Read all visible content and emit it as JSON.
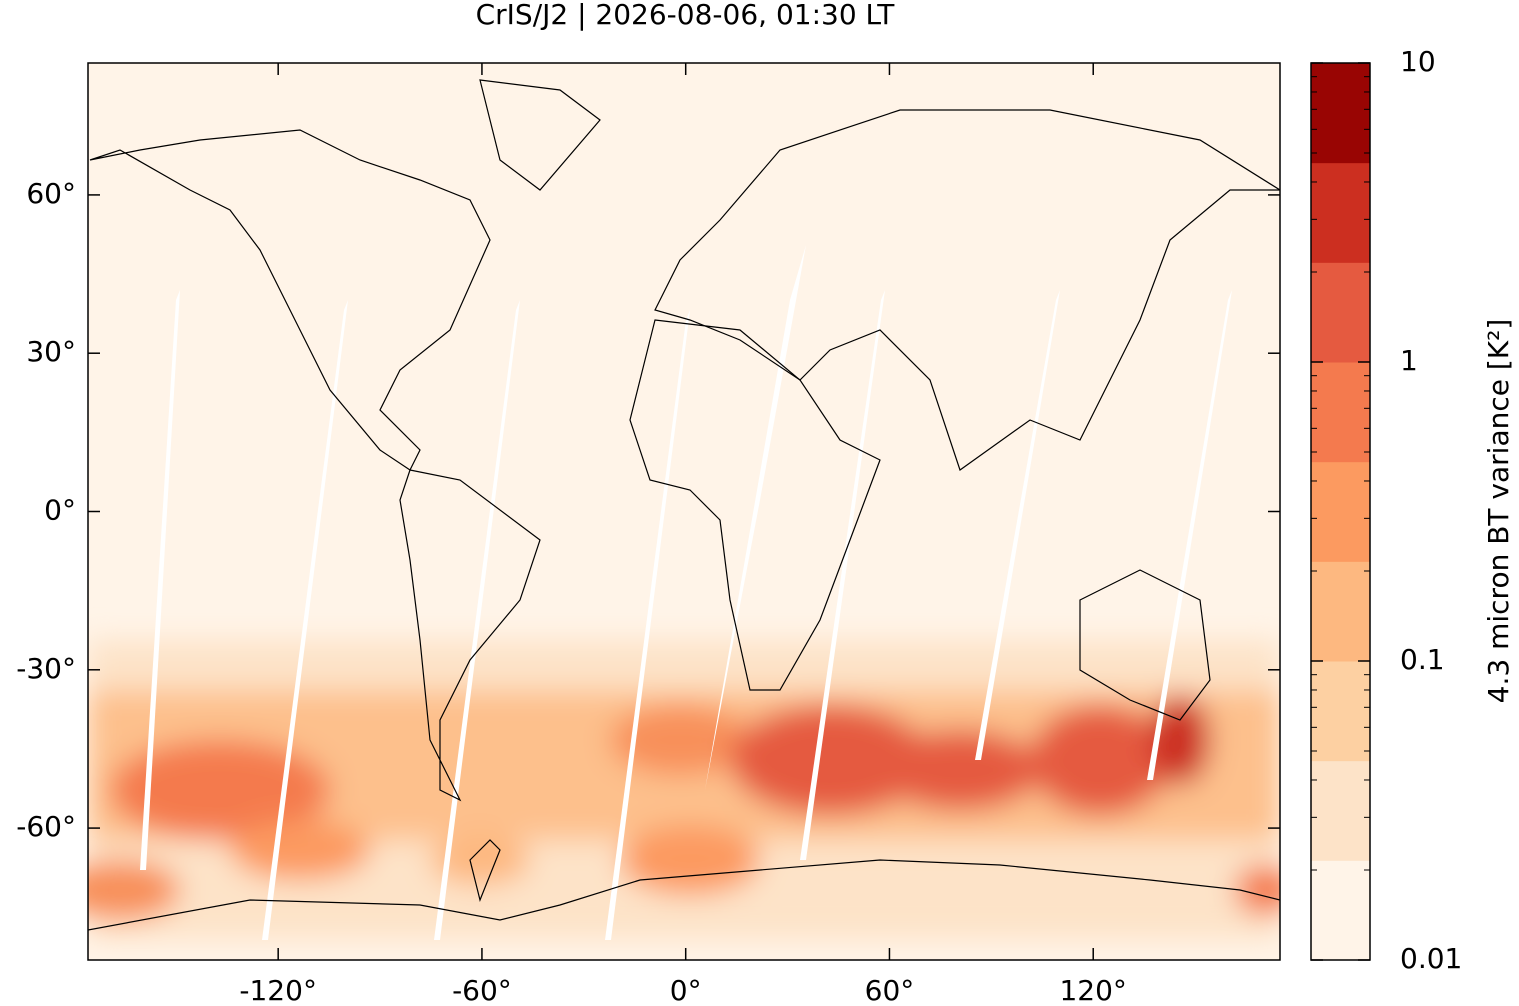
{
  "chart_data": {
    "type": "map",
    "title": "CrIS/J2 | 2026-08-06, 01:30 LT",
    "xlim": [
      -176,
      175
    ],
    "ylim": [
      -85,
      85
    ],
    "xticks": [
      {
        "value": -120,
        "label": "-120°"
      },
      {
        "value": -60,
        "label": "-60°"
      },
      {
        "value": 0,
        "label": "0°"
      },
      {
        "value": 60,
        "label": "60°"
      },
      {
        "value": 120,
        "label": "120°"
      }
    ],
    "yticks": [
      {
        "value": -60,
        "label": "-60°"
      },
      {
        "value": -30,
        "label": "-30°"
      },
      {
        "value": 0,
        "label": "0°"
      },
      {
        "value": 30,
        "label": "30°"
      },
      {
        "value": 60,
        "label": "60°"
      }
    ],
    "colorbar": {
      "label": "4.3 micron BT variance [K²]",
      "log": true,
      "lim": [
        0.01,
        10
      ],
      "ticks": [
        0.01,
        0.1,
        1,
        10
      ],
      "colors": [
        "#fff4e8",
        "#fde3c8",
        "#fdd0a2",
        "#fdb880",
        "#fc9a60",
        "#f47a4e",
        "#e55a40",
        "#cc2f20",
        "#990503"
      ]
    }
  }
}
